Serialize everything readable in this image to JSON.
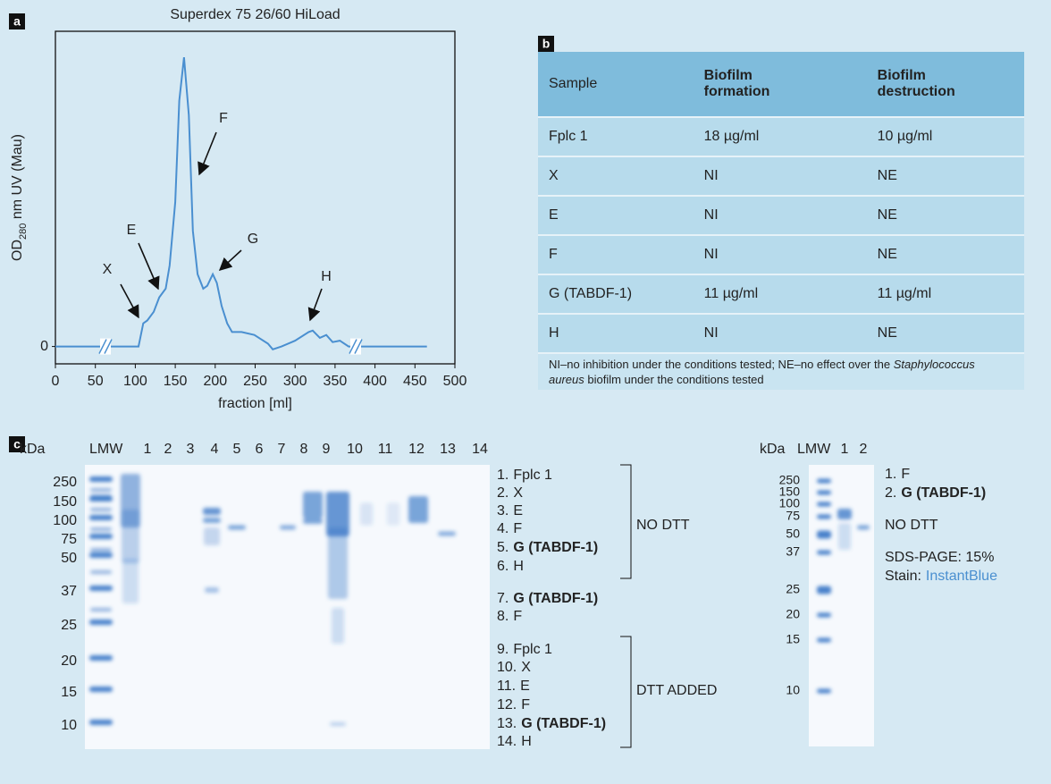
{
  "chart_data": {
    "type": "line",
    "panel_label": "a",
    "title": "Superdex 75 26/60 HiLoad",
    "x_label": "fraction [ml]",
    "y_label": {
      "main": "OD",
      "sub": "280",
      "rest": " nm UV (Mau)"
    },
    "x": [
      0,
      104,
      110,
      115,
      123,
      130,
      138,
      143,
      150,
      155,
      161,
      167,
      172,
      178,
      185,
      190,
      197,
      202,
      208,
      215,
      221,
      233,
      249,
      266,
      272,
      283,
      300,
      317,
      322,
      331,
      339,
      347,
      356,
      367,
      465
    ],
    "values": [
      0,
      0,
      8,
      9,
      12,
      17,
      20,
      28,
      50,
      85,
      100,
      80,
      40,
      25,
      20,
      21,
      25,
      22,
      14,
      8,
      5,
      5,
      4,
      1,
      -1,
      0,
      2,
      5,
      5.5,
      3,
      4,
      1.5,
      2,
      0,
      0
    ],
    "color": "#4a8fd0",
    "xlim": [
      0,
      500
    ],
    "ylim": [
      -6,
      109
    ],
    "xticks": [
      0,
      50,
      100,
      150,
      200,
      250,
      300,
      350,
      400,
      450,
      500
    ],
    "yticks": [
      0
    ],
    "annotations": [
      "X",
      "E",
      "F",
      "G",
      "H"
    ]
  },
  "panel_b": {
    "label": "b",
    "columns": [
      "Sample",
      "Biofilm formation",
      "Biofilm destruction"
    ],
    "rows": [
      [
        "Fplc 1",
        "18 µg/ml",
        "10 µg/ml"
      ],
      [
        "X",
        "NI",
        "NE"
      ],
      [
        "E",
        "NI",
        "NE"
      ],
      [
        "F",
        "NI",
        "NE"
      ],
      [
        "G (TABDF-1)",
        "11 µg/ml",
        "11 µg/ml"
      ],
      [
        "H",
        "NI",
        "NE"
      ]
    ],
    "footnote": {
      "before": "NI–no inhibition under the conditions tested; NE–no effect over the ",
      "italic": "Staphylococcus aureus",
      "after": " biofilm under the conditions tested"
    }
  },
  "panel_c": {
    "label": "c",
    "left_gel": {
      "unit": "kDa",
      "ladder": "LMW",
      "lanes": [
        "1",
        "2",
        "3",
        "4",
        "5",
        "6",
        "7",
        "8",
        "9",
        "10",
        "11",
        "12",
        "13",
        "14"
      ],
      "markers": [
        "250",
        "150",
        "100",
        "75",
        "50",
        "37",
        "25",
        "20",
        "15",
        "10"
      ],
      "legend": [
        {
          "num": "1.",
          "text": "Fplc 1",
          "bold": false
        },
        {
          "num": "2.",
          "text": "X",
          "bold": false
        },
        {
          "num": "3.",
          "text": "E",
          "bold": false
        },
        {
          "num": "4.",
          "text": "F",
          "bold": false
        },
        {
          "num": "5.",
          "text": "G (TABDF-1)",
          "bold": true
        },
        {
          "num": "6.",
          "text": "H",
          "bold": false
        },
        {
          "num": "7.",
          "text": "G (TABDF-1)",
          "bold": true
        },
        {
          "num": "8.",
          "text": "F",
          "bold": false
        },
        {
          "num": "9.",
          "text": "Fplc 1",
          "bold": false
        },
        {
          "num": "10.",
          "text": "X",
          "bold": false
        },
        {
          "num": "11.",
          "text": "E",
          "bold": false
        },
        {
          "num": "12.",
          "text": "F",
          "bold": false
        },
        {
          "num": "13.",
          "text": "G (TABDF-1)",
          "bold": true
        },
        {
          "num": "14.",
          "text": "H",
          "bold": false
        }
      ],
      "groups": [
        "NO DTT",
        "DTT ADDED"
      ]
    },
    "right_gel": {
      "unit": "kDa",
      "ladder": "LMW",
      "lanes": [
        "1",
        "2"
      ],
      "markers": [
        "250",
        "150",
        "100",
        "75",
        "50",
        "37",
        "25",
        "20",
        "15",
        "10"
      ],
      "legend": [
        {
          "num": "1.",
          "text": "F",
          "bold": false
        },
        {
          "num": "2.",
          "text": "G (TABDF-1)",
          "bold": true
        }
      ],
      "condition": "NO DTT",
      "gel_note": "SDS-PAGE: 15%",
      "stain": {
        "label": "Stain:",
        "name": "InstantBlue"
      }
    }
  }
}
